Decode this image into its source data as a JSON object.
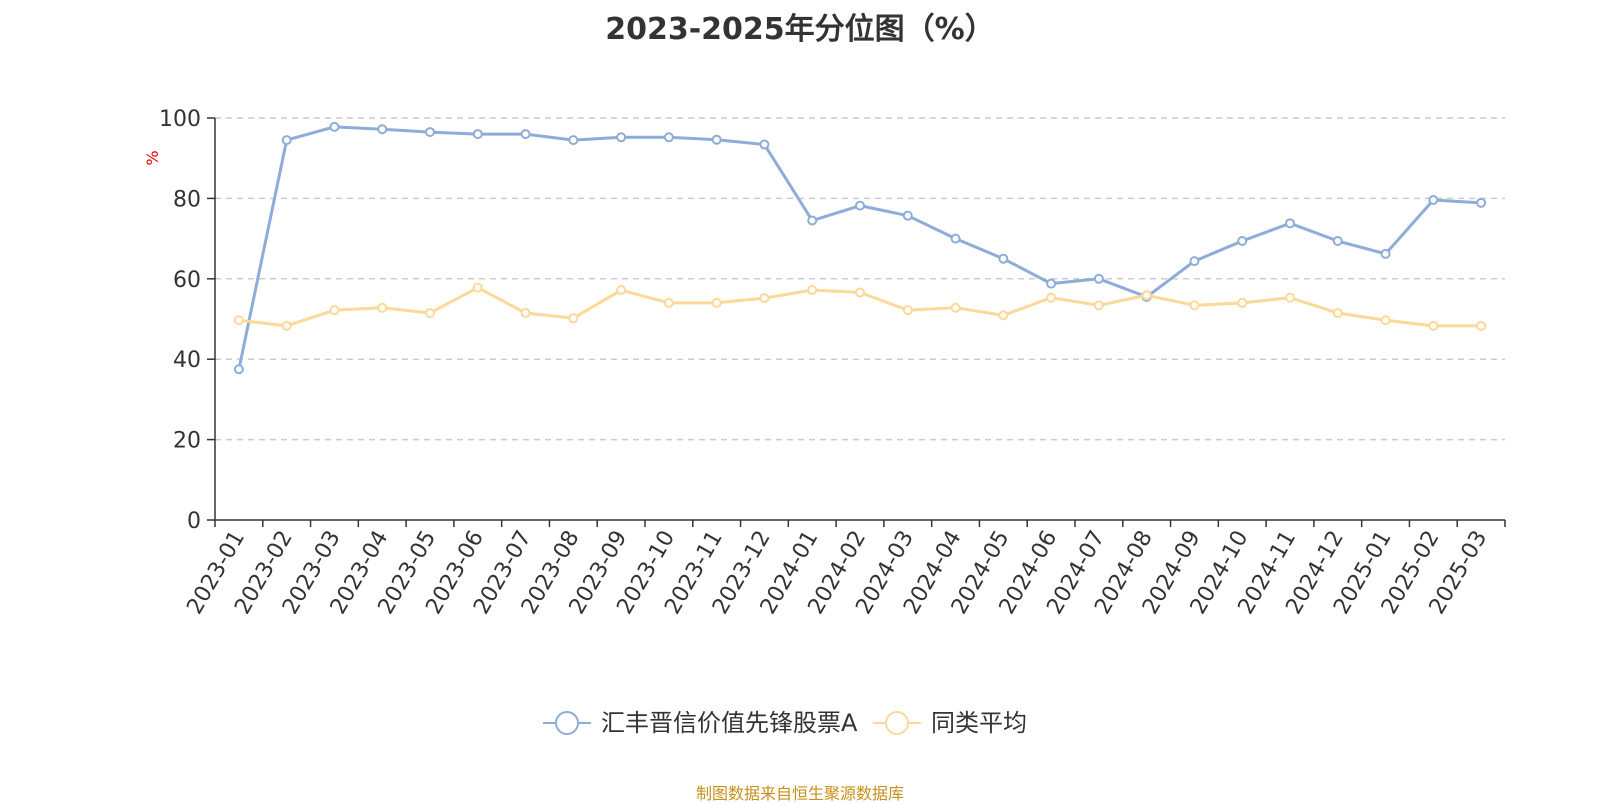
{
  "chart_data": {
    "type": "line",
    "title": "2023-2025年分位图（%）",
    "ylabel": "%",
    "xlabel": "",
    "ylim": [
      0,
      100
    ],
    "yticks": [
      0,
      20,
      40,
      60,
      80,
      100
    ],
    "grid": true,
    "legend_position": "bottom",
    "x": [
      "2023-01",
      "2023-02",
      "2023-03",
      "2023-04",
      "2023-05",
      "2023-06",
      "2023-07",
      "2023-08",
      "2023-09",
      "2023-10",
      "2023-11",
      "2023-12",
      "2024-01",
      "2024-02",
      "2024-03",
      "2024-04",
      "2024-05",
      "2024-06",
      "2024-07",
      "2024-08",
      "2024-09",
      "2024-10",
      "2024-11",
      "2024-12",
      "2025-01",
      "2025-02",
      "2025-03"
    ],
    "series": [
      {
        "name": "汇丰晋信价值先锋股票A",
        "color": "#8eacd9",
        "values": [
          37.5,
          94.5,
          97.8,
          97.2,
          96.5,
          96.0,
          96.0,
          94.5,
          95.2,
          95.2,
          94.6,
          93.4,
          74.5,
          78.2,
          75.7,
          70.0,
          65.0,
          58.8,
          60.0,
          55.5,
          64.4,
          69.4,
          73.8,
          69.4,
          66.2,
          79.6,
          78.9
        ]
      },
      {
        "name": "同类平均",
        "color": "#fcd899",
        "values": [
          49.7,
          48.3,
          52.2,
          52.8,
          51.5,
          57.8,
          51.5,
          50.2,
          57.2,
          54.0,
          54.0,
          55.2,
          57.2,
          56.6,
          52.2,
          52.8,
          50.9,
          55.3,
          53.4,
          55.9,
          53.4,
          54.0,
          55.3,
          51.5,
          49.7,
          48.3,
          48.3
        ]
      }
    ]
  },
  "footer": {
    "source": "制图数据来自恒生聚源数据库"
  }
}
